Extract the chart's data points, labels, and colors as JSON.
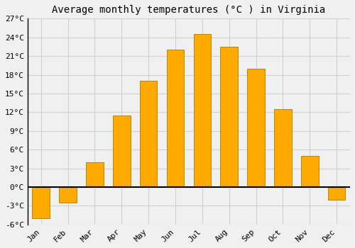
{
  "title": "Average monthly temperatures (°C ) in Virginia",
  "months": [
    "Jan",
    "Feb",
    "Mar",
    "Apr",
    "May",
    "Jun",
    "Jul",
    "Aug",
    "Sep",
    "Oct",
    "Nov",
    "Dec"
  ],
  "values": [
    -5.0,
    -2.5,
    4.0,
    11.5,
    17.0,
    22.0,
    24.5,
    22.5,
    19.0,
    12.5,
    5.0,
    -2.0
  ],
  "bar_color_face": "#FFAA00",
  "bar_color_edge": "#B8860B",
  "ylim": [
    -6,
    27
  ],
  "yticks": [
    -6,
    -3,
    0,
    3,
    6,
    9,
    12,
    15,
    18,
    21,
    24,
    27
  ],
  "ytick_labels": [
    "-6°C",
    "-3°C",
    "0°C",
    "3°C",
    "6°C",
    "9°C",
    "12°C",
    "15°C",
    "18°C",
    "21°C",
    "24°C",
    "27°C"
  ],
  "background_color": "#f0f0f0",
  "grid_color": "#d0d0d0",
  "title_fontsize": 10,
  "tick_label_fontsize": 8,
  "zero_line_color": "#000000",
  "bar_width": 0.65,
  "left_spine_color": "#000000"
}
